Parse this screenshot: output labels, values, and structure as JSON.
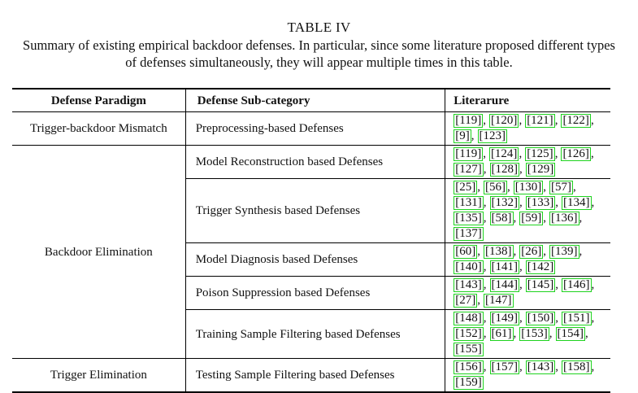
{
  "table_label": "TABLE IV",
  "caption": "Summary of existing empirical backdoor defenses. In particular, since some literature proposed different types of defenses simultaneously, they will appear multiple times in this table.",
  "headers": {
    "paradigm": "Defense Paradigm",
    "subcategory": "Defense Sub-category",
    "literature": "Literarure"
  },
  "groups": [
    {
      "paradigm": "Trigger-backdoor Mismatch",
      "rows": [
        {
          "sub": "Preprocessing-based Defenses",
          "refs": [
            [
              "[119]",
              "[120]",
              "[121]",
              "[122]"
            ],
            [
              "[9]",
              "[123]"
            ]
          ]
        }
      ]
    },
    {
      "paradigm": "Backdoor Elimination",
      "rows": [
        {
          "sub": "Model Reconstruction based Defenses",
          "refs": [
            [
              "[119]",
              "[124]",
              "[125]",
              "[126]"
            ],
            [
              "[127]",
              "[128]",
              "[129]"
            ]
          ]
        },
        {
          "sub": "Trigger Synthesis based Defenses",
          "refs": [
            [
              "[25]",
              "[56]",
              "[130]",
              "[57]"
            ],
            [
              "[131]",
              "[132]",
              "[133]",
              "[134]"
            ],
            [
              "[135]",
              "[58]",
              "[59]",
              "[136]"
            ],
            [
              "[137]"
            ]
          ]
        },
        {
          "sub": "Model Diagnosis based Defenses",
          "refs": [
            [
              "[60]",
              "[138]",
              "[26]",
              "[139]"
            ],
            [
              "[140]",
              "[141]",
              "[142]"
            ]
          ]
        },
        {
          "sub": "Poison Suppression based Defenses",
          "refs": [
            [
              "[143]",
              "[144]",
              "[145]",
              "[146]"
            ],
            [
              "[27]",
              "[147]"
            ]
          ]
        },
        {
          "sub": "Training Sample Filtering based Defenses",
          "refs": [
            [
              "[148]",
              "[149]",
              "[150]",
              "[151]"
            ],
            [
              "[152]",
              "[61]",
              "[153]",
              "[154]"
            ],
            [
              "[155]"
            ]
          ]
        }
      ]
    },
    {
      "paradigm": "Trigger Elimination",
      "rows": [
        {
          "sub": "Testing Sample Filtering based Defenses",
          "refs": [
            [
              "[156]",
              "[157]",
              "[143]",
              "[158]"
            ],
            [
              "[159]"
            ]
          ]
        }
      ]
    }
  ]
}
